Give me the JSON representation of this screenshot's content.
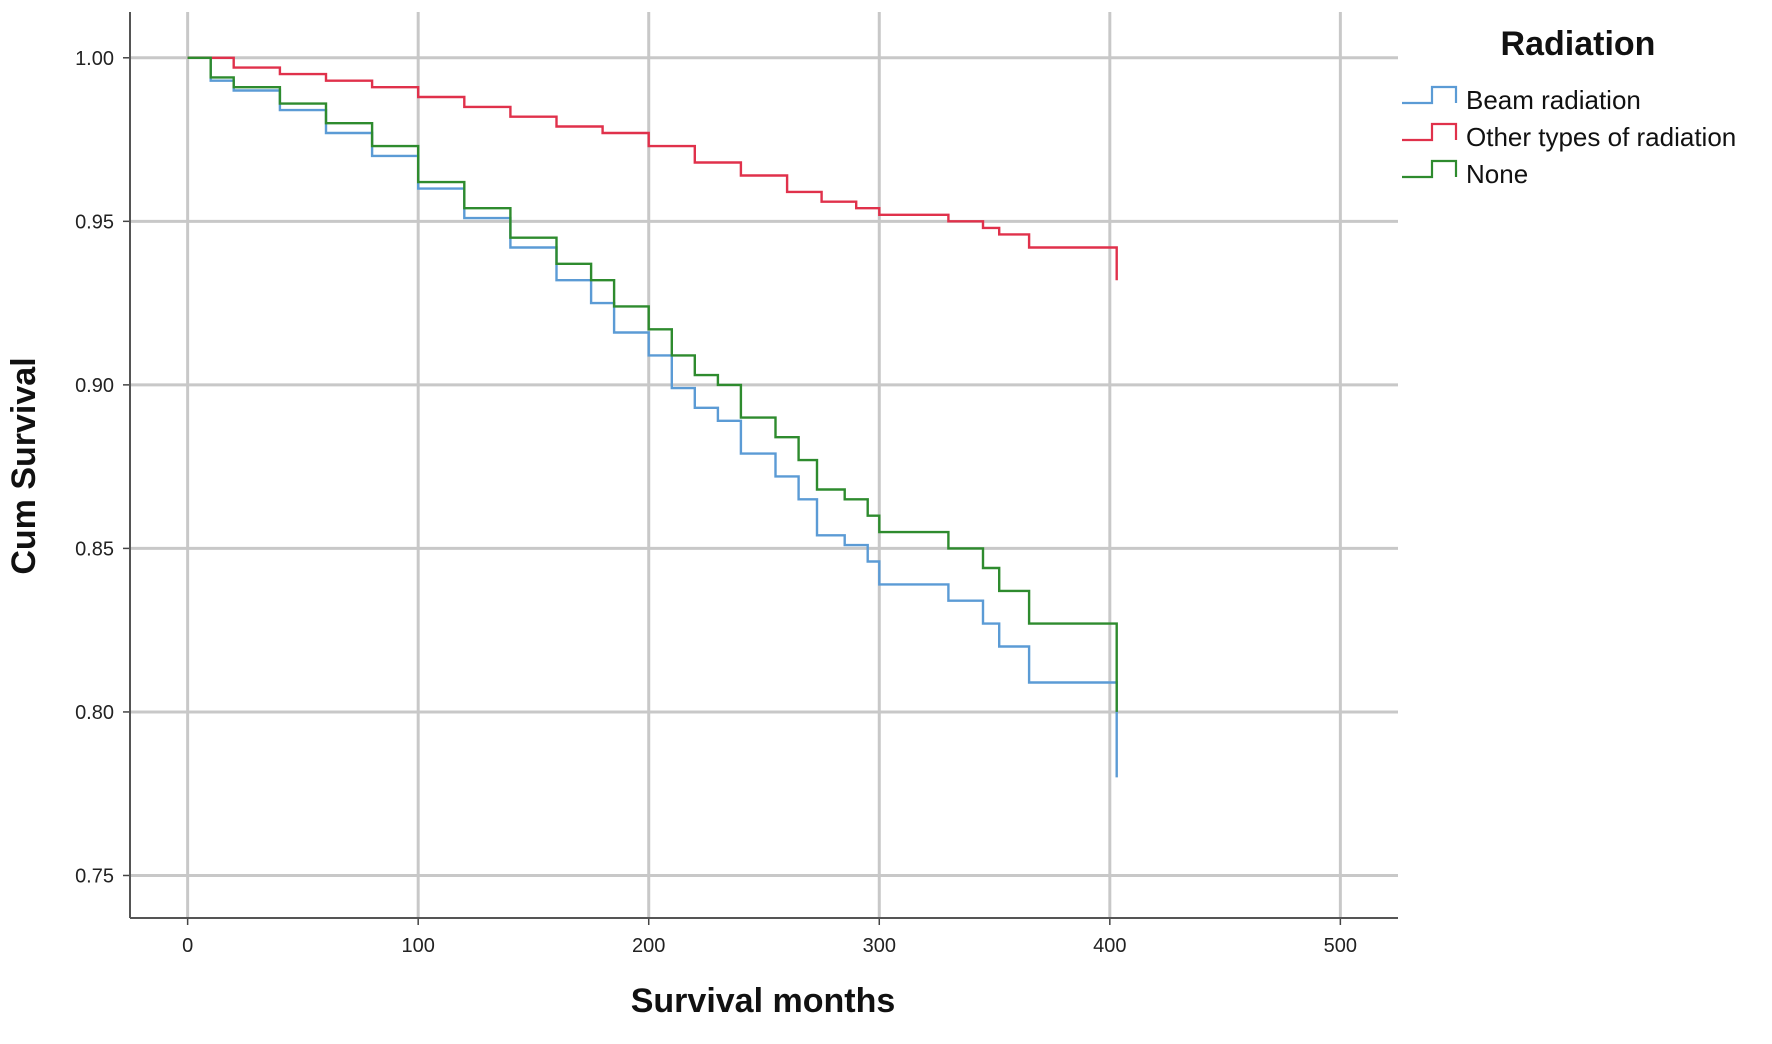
{
  "chart_data": {
    "type": "line",
    "step": true,
    "xlabel": "Survival months",
    "ylabel": "Cum Survival",
    "xlim": [
      -25,
      525
    ],
    "ylim": [
      0.737,
      1.014
    ],
    "x_ticks": [
      0,
      100,
      200,
      300,
      400,
      500
    ],
    "y_ticks": [
      0.75,
      0.8,
      0.85,
      0.9,
      0.95,
      1.0
    ],
    "x_tick_labels": [
      "0",
      "100",
      "200",
      "300",
      "400",
      "500"
    ],
    "y_tick_labels": [
      "0.75",
      "0.80",
      "0.85",
      "0.90",
      "0.95",
      "1.00"
    ],
    "grid": true,
    "legend": {
      "title": "Radiation",
      "placement": "right"
    },
    "series": [
      {
        "name": "Beam radiation",
        "color": "#5b9bd5",
        "points": [
          [
            0,
            1.0
          ],
          [
            10,
            0.993
          ],
          [
            20,
            0.99
          ],
          [
            40,
            0.984
          ],
          [
            60,
            0.977
          ],
          [
            80,
            0.97
          ],
          [
            100,
            0.96
          ],
          [
            120,
            0.951
          ],
          [
            140,
            0.942
          ],
          [
            160,
            0.932
          ],
          [
            175,
            0.925
          ],
          [
            185,
            0.916
          ],
          [
            200,
            0.909
          ],
          [
            210,
            0.899
          ],
          [
            220,
            0.893
          ],
          [
            230,
            0.889
          ],
          [
            240,
            0.879
          ],
          [
            255,
            0.872
          ],
          [
            265,
            0.865
          ],
          [
            273,
            0.854
          ],
          [
            285,
            0.851
          ],
          [
            295,
            0.846
          ],
          [
            300,
            0.839
          ],
          [
            320,
            0.839
          ],
          [
            330,
            0.834
          ],
          [
            345,
            0.827
          ],
          [
            352,
            0.82
          ],
          [
            365,
            0.809
          ],
          [
            380,
            0.809
          ],
          [
            400,
            0.809
          ],
          [
            403,
            0.809
          ],
          [
            403,
            0.78
          ]
        ]
      },
      {
        "name": "Other types of radiation",
        "color": "#e0314b",
        "points": [
          [
            0,
            1.0
          ],
          [
            20,
            0.997
          ],
          [
            40,
            0.995
          ],
          [
            60,
            0.993
          ],
          [
            80,
            0.991
          ],
          [
            100,
            0.988
          ],
          [
            120,
            0.985
          ],
          [
            140,
            0.982
          ],
          [
            160,
            0.979
          ],
          [
            180,
            0.977
          ],
          [
            200,
            0.973
          ],
          [
            220,
            0.968
          ],
          [
            240,
            0.964
          ],
          [
            260,
            0.959
          ],
          [
            275,
            0.956
          ],
          [
            290,
            0.954
          ],
          [
            300,
            0.952
          ],
          [
            320,
            0.952
          ],
          [
            330,
            0.95
          ],
          [
            345,
            0.948
          ],
          [
            352,
            0.946
          ],
          [
            365,
            0.942
          ],
          [
            380,
            0.942
          ],
          [
            403,
            0.942
          ],
          [
            403,
            0.932
          ]
        ]
      },
      {
        "name": "None",
        "color": "#2e8b2e",
        "points": [
          [
            0,
            1.0
          ],
          [
            10,
            0.994
          ],
          [
            20,
            0.991
          ],
          [
            40,
            0.986
          ],
          [
            60,
            0.98
          ],
          [
            80,
            0.973
          ],
          [
            100,
            0.962
          ],
          [
            120,
            0.954
          ],
          [
            140,
            0.945
          ],
          [
            160,
            0.937
          ],
          [
            175,
            0.932
          ],
          [
            185,
            0.924
          ],
          [
            200,
            0.917
          ],
          [
            210,
            0.909
          ],
          [
            220,
            0.903
          ],
          [
            230,
            0.9
          ],
          [
            240,
            0.89
          ],
          [
            255,
            0.884
          ],
          [
            265,
            0.877
          ],
          [
            273,
            0.868
          ],
          [
            285,
            0.865
          ],
          [
            295,
            0.86
          ],
          [
            300,
            0.855
          ],
          [
            320,
            0.855
          ],
          [
            330,
            0.85
          ],
          [
            345,
            0.844
          ],
          [
            352,
            0.837
          ],
          [
            365,
            0.827
          ],
          [
            380,
            0.827
          ],
          [
            403,
            0.827
          ],
          [
            403,
            0.8
          ]
        ]
      }
    ]
  }
}
